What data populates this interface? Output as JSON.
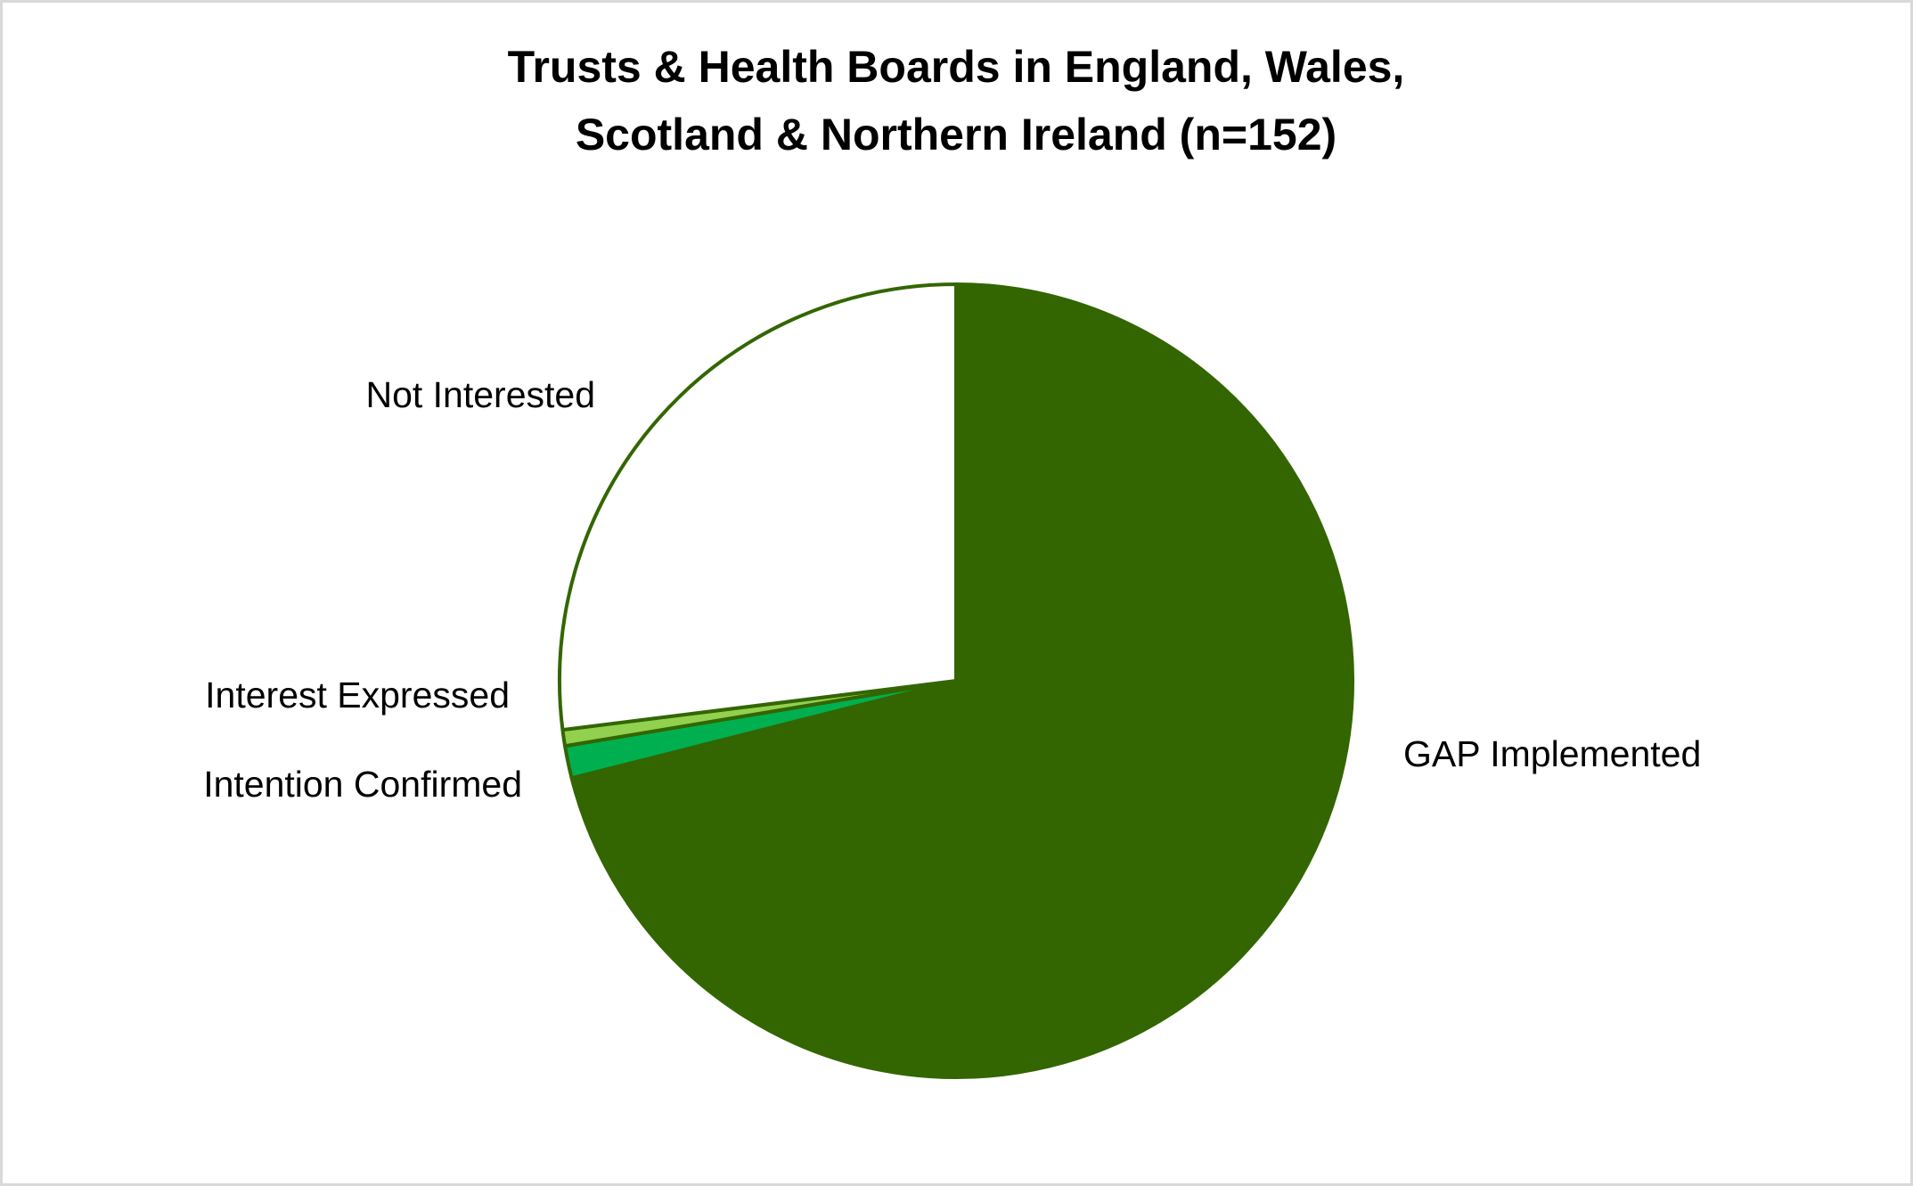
{
  "chart_data": {
    "type": "pie",
    "title": [
      "Trusts & Health Boards in England, Wales,",
      "Scotland & Northern Ireland (n=152)"
    ],
    "categories": [
      "GAP Implemented",
      "Intention Confirmed",
      "Interest Expressed",
      "Not Interested"
    ],
    "values": [
      108,
      2,
      1,
      41
    ],
    "colors": [
      "#336600",
      "#00b050",
      "#92d050",
      "#ffffff"
    ],
    "edge_color": "#336600"
  }
}
